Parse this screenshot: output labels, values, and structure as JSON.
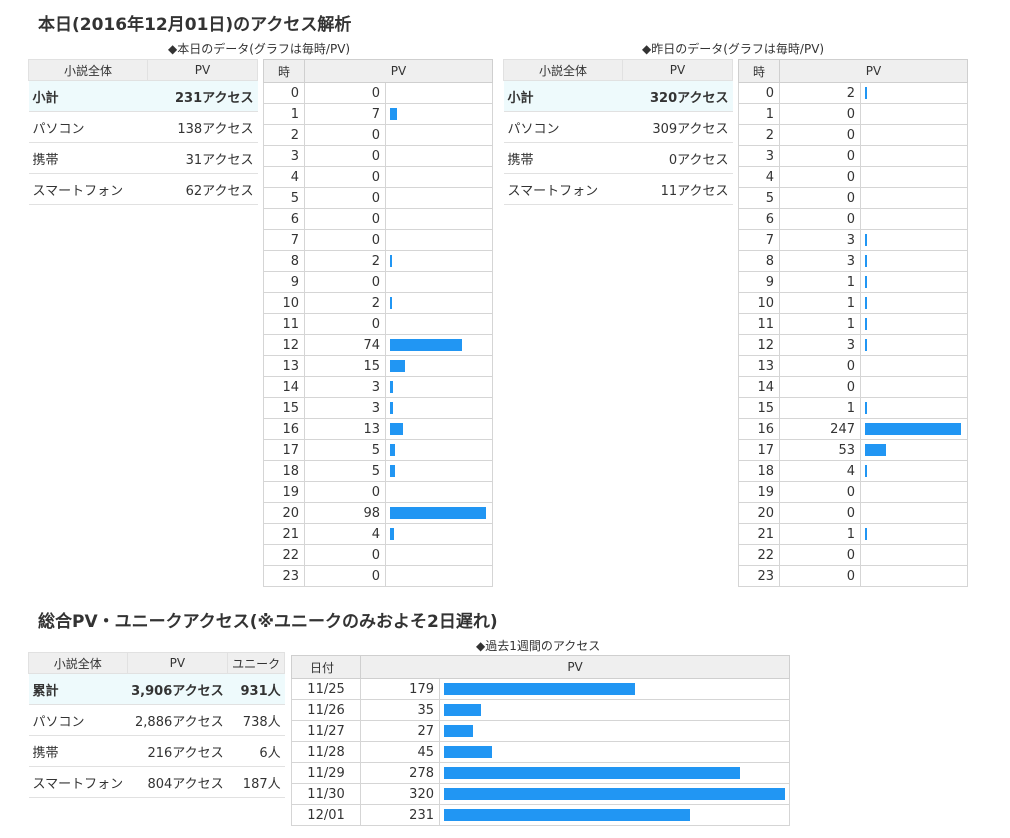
{
  "today": {
    "title": "本日(2016年12月01日)のアクセス解析",
    "caption": "◆本日のデータ(グラフは毎時/PV)",
    "summary_header": [
      "小説全体",
      "PV"
    ],
    "summary_rows": [
      {
        "label": "小計",
        "value": "231アクセス"
      },
      {
        "label": "パソコン",
        "value": "138アクセス"
      },
      {
        "label": "携帯",
        "value": "31アクセス"
      },
      {
        "label": "スマートフォン",
        "value": "62アクセス"
      }
    ],
    "hourly_header": [
      "時",
      "PV"
    ],
    "hours": [
      "0",
      "1",
      "2",
      "3",
      "4",
      "5",
      "6",
      "7",
      "8",
      "9",
      "10",
      "11",
      "12",
      "13",
      "14",
      "15",
      "16",
      "17",
      "18",
      "19",
      "20",
      "21",
      "22",
      "23"
    ],
    "pv": [
      0,
      7,
      0,
      0,
      0,
      0,
      0,
      0,
      2,
      0,
      2,
      0,
      74,
      15,
      3,
      3,
      13,
      5,
      5,
      0,
      98,
      4,
      0,
      0
    ],
    "max": 98
  },
  "yesterday": {
    "caption": "◆昨日のデータ(グラフは毎時/PV)",
    "summary_header": [
      "小説全体",
      "PV"
    ],
    "summary_rows": [
      {
        "label": "小計",
        "value": "320アクセス"
      },
      {
        "label": "パソコン",
        "value": "309アクセス"
      },
      {
        "label": "携帯",
        "value": "0アクセス"
      },
      {
        "label": "スマートフォン",
        "value": "11アクセス"
      }
    ],
    "hourly_header": [
      "時",
      "PV"
    ],
    "hours": [
      "0",
      "1",
      "2",
      "3",
      "4",
      "5",
      "6",
      "7",
      "8",
      "9",
      "10",
      "11",
      "12",
      "13",
      "14",
      "15",
      "16",
      "17",
      "18",
      "19",
      "20",
      "21",
      "22",
      "23"
    ],
    "pv": [
      2,
      0,
      0,
      0,
      0,
      0,
      0,
      3,
      3,
      1,
      1,
      1,
      3,
      0,
      0,
      1,
      247,
      53,
      4,
      0,
      0,
      1,
      0,
      0
    ],
    "max": 247
  },
  "total": {
    "title": "総合PV・ユニークアクセス(※ユニークのみおよそ2日遅れ)",
    "caption": "◆過去1週間のアクセス",
    "summary_header": [
      "小説全体",
      "PV",
      "ユニーク"
    ],
    "summary_rows": [
      {
        "label": "累計",
        "pv": "3,906アクセス",
        "unique": "931人"
      },
      {
        "label": "パソコン",
        "pv": "2,886アクセス",
        "unique": "738人"
      },
      {
        "label": "携帯",
        "pv": "216アクセス",
        "unique": "6人"
      },
      {
        "label": "スマートフォン",
        "pv": "804アクセス",
        "unique": "187人"
      }
    ],
    "weekly_header": [
      "日付",
      "PV"
    ],
    "dates": [
      "11/25",
      "11/26",
      "11/27",
      "11/28",
      "11/29",
      "11/30",
      "12/01"
    ],
    "pv": [
      179,
      35,
      27,
      45,
      278,
      320,
      231
    ],
    "max": 320
  },
  "colors": {
    "bar": "#2196f3",
    "header_bg": "#efefef",
    "subtotal_bg": "#eefafc"
  }
}
